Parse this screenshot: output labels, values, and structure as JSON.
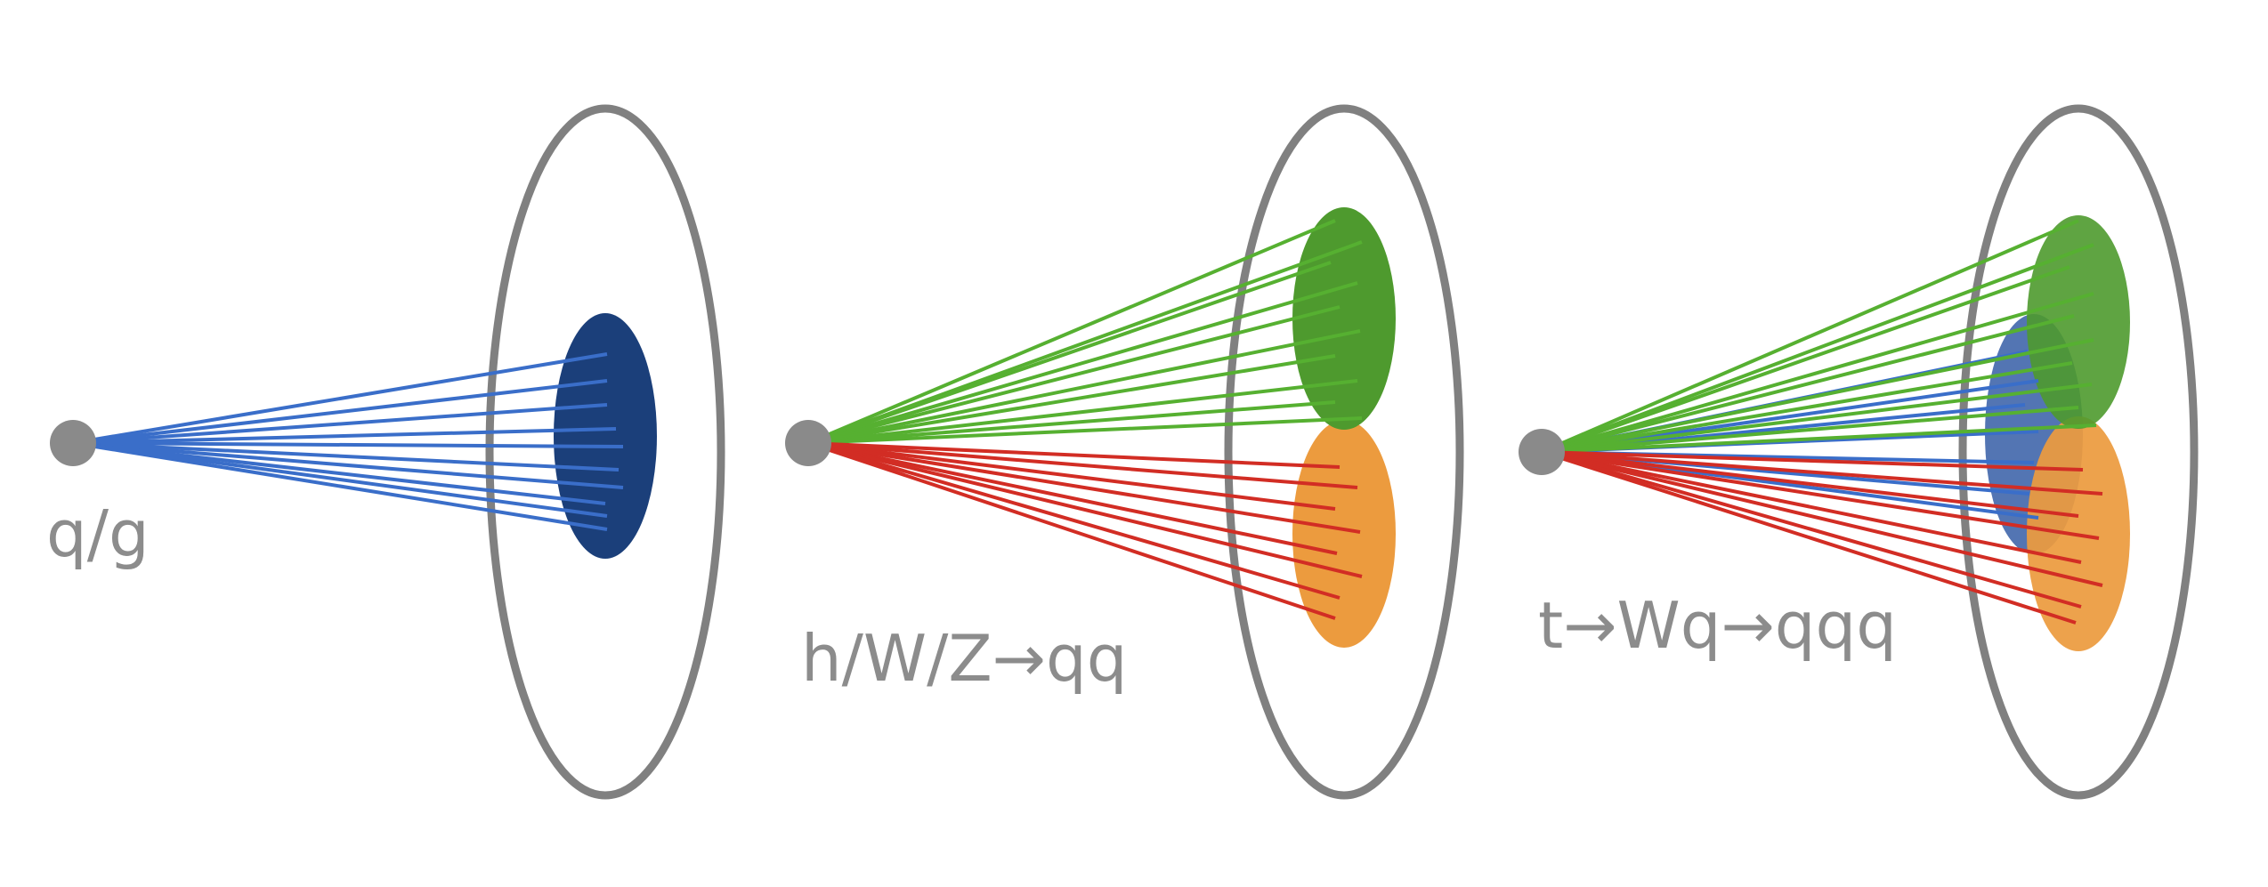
{
  "colors": {
    "background": "#ffffff",
    "ring": "#808080",
    "origin": "#8a8a8a",
    "label": "#8c8c8c",
    "dark_blue": "#1b3f7a",
    "blue": "#3a6ec9",
    "green": "#4e9a2e",
    "green_line": "#56b031",
    "orange": "#ec9b3e",
    "red": "#d22d24"
  },
  "panels": [
    {
      "label": "q/g"
    },
    {
      "label": "h/W/Z→qq"
    },
    {
      "label": "t→Wq→qqq"
    }
  ]
}
